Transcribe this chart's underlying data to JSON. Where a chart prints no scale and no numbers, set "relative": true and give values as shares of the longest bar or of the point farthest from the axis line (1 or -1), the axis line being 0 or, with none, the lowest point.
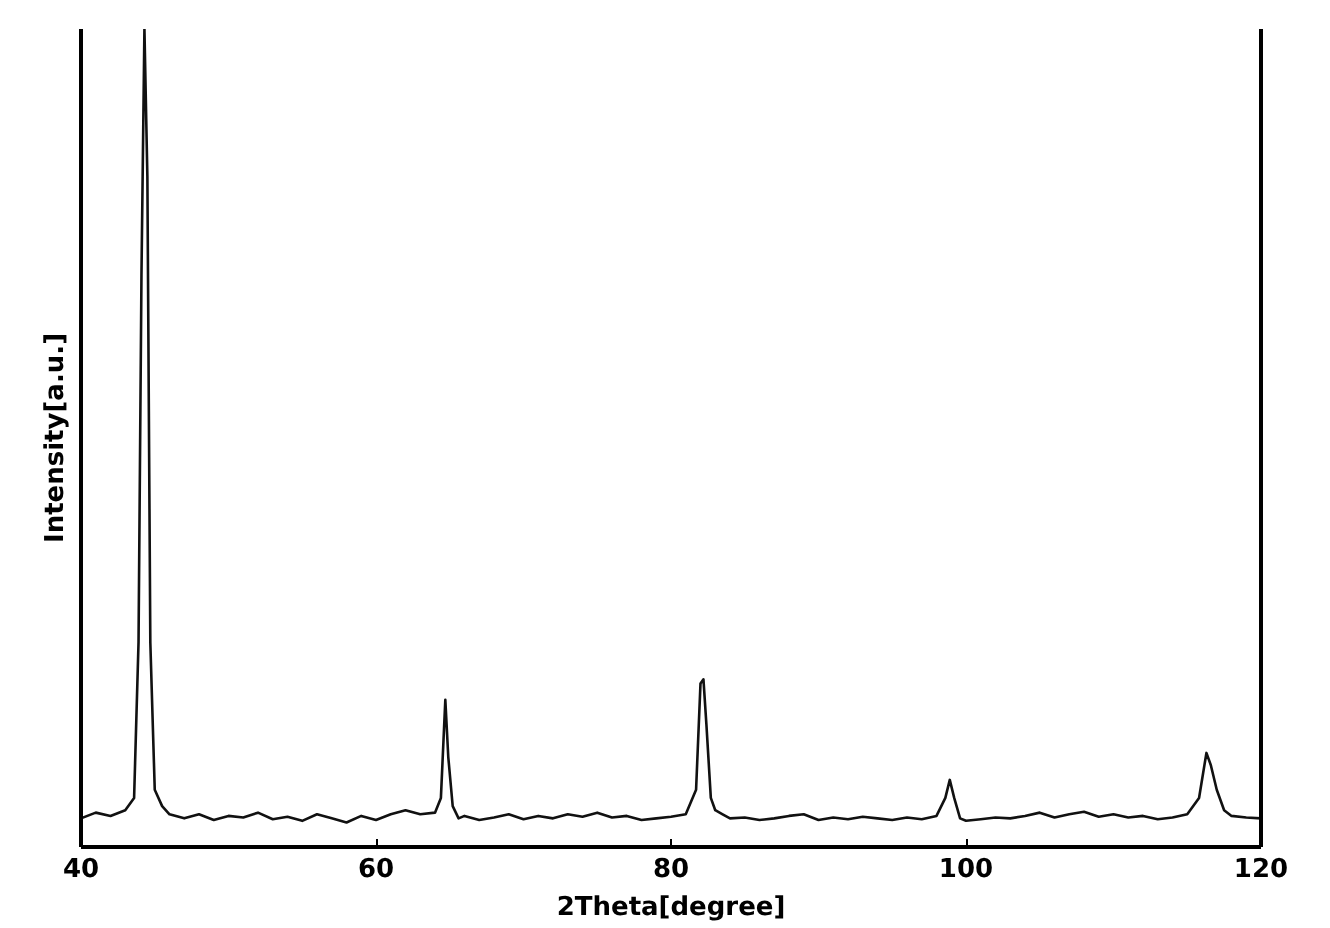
{
  "chart_data": {
    "type": "line",
    "relative": true,
    "xlabel": "2Theta[degree]",
    "ylabel": "Intensity[a.u.]",
    "xlim": [
      40,
      120
    ],
    "xticks": [
      40,
      60,
      80,
      100,
      120
    ],
    "tick_labels": "x",
    "grid": false,
    "marker": "none",
    "line_style": "solid",
    "series": [
      {
        "color": "#111111",
        "x": [
          40,
          41,
          42,
          43,
          43.6,
          43.9,
          44.1,
          44.3,
          44.5,
          44.7,
          45,
          45.5,
          46,
          47,
          48,
          49,
          50,
          51,
          52,
          53,
          54,
          55,
          56,
          57,
          58,
          59,
          60,
          61,
          62,
          63,
          64,
          64.4,
          64.7,
          64.9,
          65.2,
          65.6,
          66,
          67,
          68,
          69,
          70,
          71,
          72,
          73,
          74,
          75,
          76,
          77,
          78,
          79,
          80,
          81,
          81.7,
          82.0,
          82.2,
          82.4,
          82.7,
          83,
          83.5,
          84,
          85,
          86,
          87,
          88,
          89,
          90,
          91,
          92,
          93,
          94,
          95,
          96,
          97,
          98,
          98.6,
          98.9,
          99.2,
          99.6,
          100,
          101,
          102,
          103,
          104,
          105,
          106,
          107,
          108,
          109,
          110,
          111,
          112,
          113,
          114,
          115,
          115.8,
          116.3,
          116.6,
          117,
          117.5,
          118,
          119,
          120
        ],
        "values": [
          0.035,
          0.042,
          0.038,
          0.045,
          0.06,
          0.25,
          0.7,
          1.0,
          0.82,
          0.25,
          0.07,
          0.05,
          0.04,
          0.035,
          0.04,
          0.033,
          0.038,
          0.036,
          0.042,
          0.034,
          0.037,
          0.032,
          0.04,
          0.035,
          0.03,
          0.038,
          0.033,
          0.04,
          0.045,
          0.04,
          0.042,
          0.06,
          0.18,
          0.11,
          0.05,
          0.035,
          0.038,
          0.033,
          0.036,
          0.04,
          0.034,
          0.038,
          0.035,
          0.04,
          0.037,
          0.042,
          0.036,
          0.038,
          0.033,
          0.035,
          0.037,
          0.04,
          0.07,
          0.2,
          0.205,
          0.15,
          0.06,
          0.045,
          0.04,
          0.035,
          0.036,
          0.033,
          0.035,
          0.038,
          0.04,
          0.033,
          0.036,
          0.034,
          0.037,
          0.035,
          0.033,
          0.036,
          0.034,
          0.038,
          0.06,
          0.082,
          0.06,
          0.035,
          0.032,
          0.034,
          0.036,
          0.035,
          0.038,
          0.042,
          0.036,
          0.04,
          0.043,
          0.037,
          0.04,
          0.036,
          0.038,
          0.034,
          0.036,
          0.04,
          0.06,
          0.115,
          0.1,
          0.07,
          0.045,
          0.038,
          0.036,
          0.035
        ]
      }
    ]
  }
}
